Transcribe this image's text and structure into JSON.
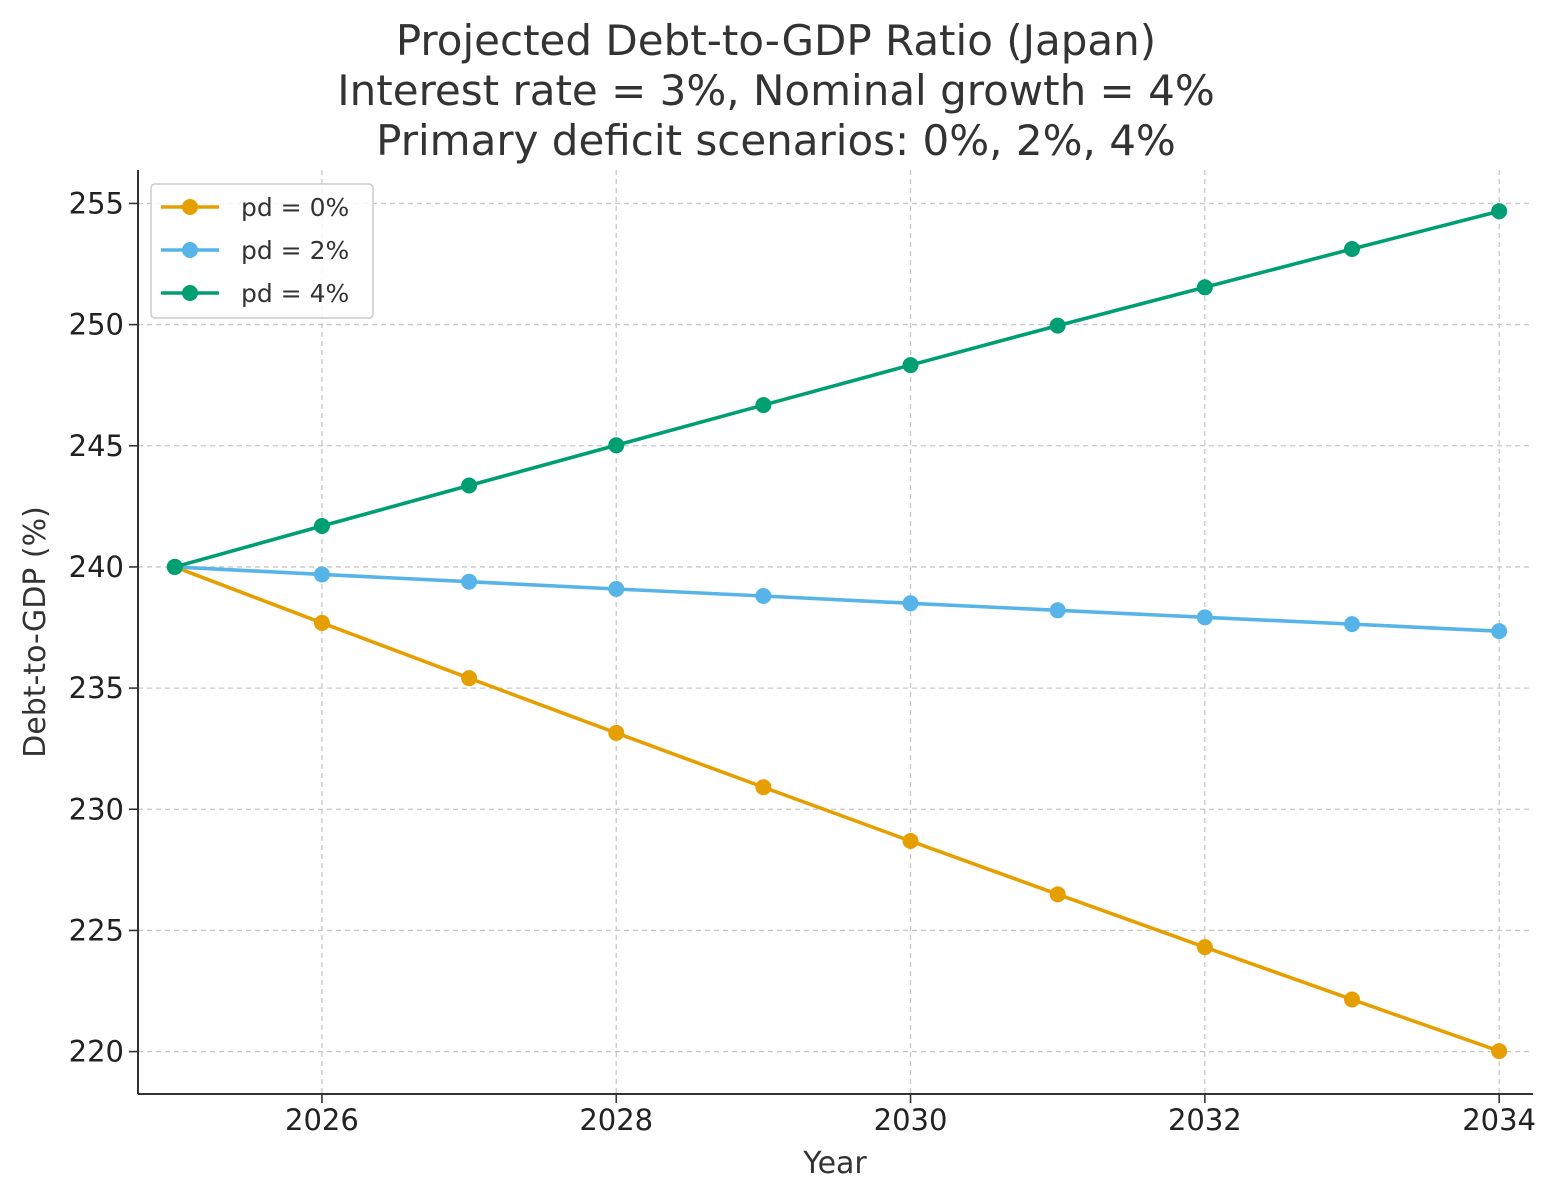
{
  "chart_data": {
    "type": "line",
    "title_lines": [
      "Projected Debt-to-GDP Ratio (Japan)",
      "Interest rate = 3%, Nominal growth = 4%",
      "Primary deficit scenarios: 0%, 2%, 4%"
    ],
    "xlabel": "Year",
    "ylabel": "Debt-to-GDP (%)",
    "x": [
      2025,
      2026,
      2027,
      2028,
      2029,
      2030,
      2031,
      2032,
      2033,
      2034
    ],
    "xticks": [
      2026,
      2028,
      2030,
      2032,
      2034
    ],
    "yticks": [
      220,
      225,
      230,
      235,
      240,
      245,
      250,
      255
    ],
    "xlim": [
      2024.75,
      2034.23
    ],
    "ylim": [
      218.25,
      256.38
    ],
    "grid": true,
    "legend_position": "top-left",
    "series": [
      {
        "name": "pd = 0%",
        "color": "#E69F00",
        "values": [
          240.0,
          237.69,
          235.41,
          233.15,
          230.91,
          228.69,
          226.49,
          224.31,
          222.15,
          220.02
        ]
      },
      {
        "name": "pd = 2%",
        "color": "#56B4E9",
        "values": [
          240.0,
          239.69,
          239.39,
          239.09,
          238.8,
          238.5,
          238.21,
          237.92,
          237.64,
          237.35
        ]
      },
      {
        "name": "pd = 4%",
        "color": "#009E73",
        "values": [
          240.0,
          241.69,
          243.36,
          245.02,
          246.68,
          248.33,
          249.96,
          251.54,
          253.12,
          254.68
        ]
      }
    ]
  }
}
